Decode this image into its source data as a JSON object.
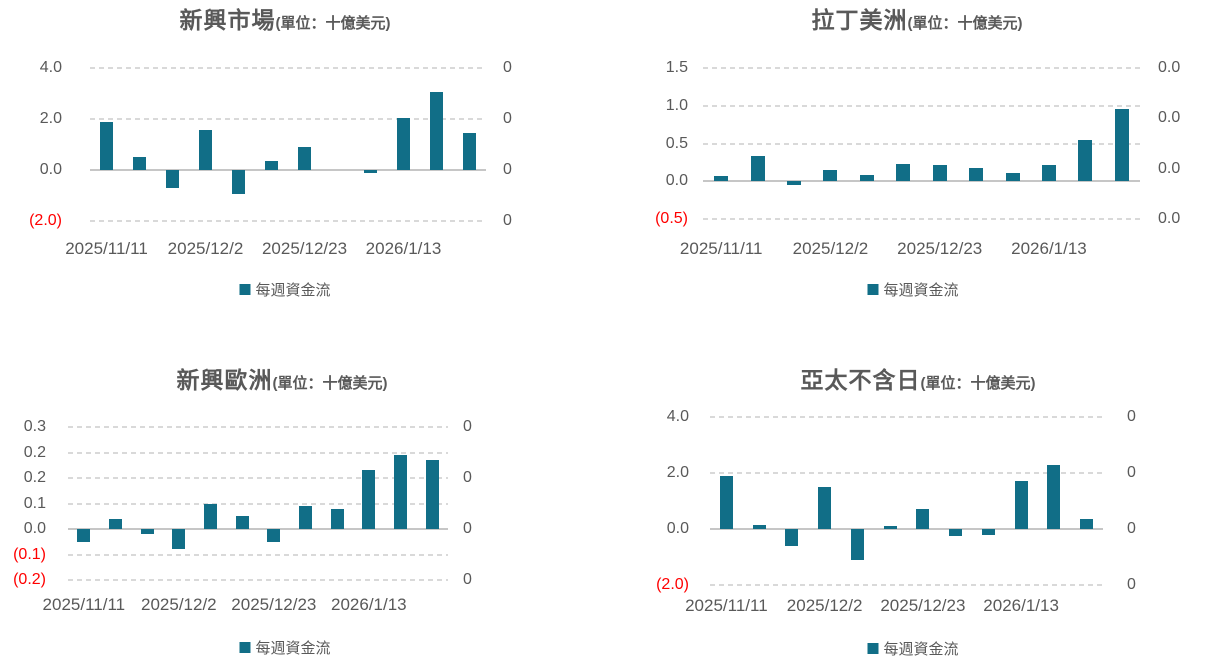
{
  "colors": {
    "bar": "#116e87",
    "gridline": "#d9d9d9",
    "zero_axis": "#c6c6c6",
    "tick_label": "#595959",
    "negative_tick_label": "#ff0000",
    "title": "#595959",
    "background": "#ffffff"
  },
  "chart_data": [
    {
      "type": "bar",
      "title": "新興市場",
      "title_unit": "(單位：十億美元)",
      "legend": [
        "每週資金流"
      ],
      "legend_position": "bottom",
      "grid": "horizontal-dashed",
      "n_bars": 12,
      "x_tick_labels": [
        "2025/11/11",
        "2025/12/2",
        "2025/12/23",
        "2026/1/13"
      ],
      "categories": [
        "2025/11/11",
        "",
        "",
        "2025/12/2",
        "",
        "",
        "2025/12/23",
        "",
        "",
        "2026/1/13",
        "",
        ""
      ],
      "series": [
        {
          "name": "每週資金流",
          "values": [
            1.9,
            0.5,
            -0.7,
            1.55,
            -0.95,
            0.35,
            0.9,
            0,
            -0.05,
            2.05,
            3.05,
            1.45
          ]
        }
      ],
      "y_axis_left": {
        "tick_labels": [
          "4.0",
          "2.0",
          "0.0",
          "(2.0)"
        ],
        "tick_values": [
          4,
          2,
          0,
          -2
        ]
      },
      "y_axis_right": {
        "tick_labels": [
          "0",
          "0",
          "0",
          "0"
        ]
      },
      "ylim": [
        -2,
        4
      ]
    },
    {
      "type": "bar",
      "title": "拉丁美洲",
      "title_unit": "(單位：十億美元)",
      "legend": [
        "每週資金流"
      ],
      "legend_position": "bottom",
      "grid": "horizontal-dashed",
      "n_bars": 12,
      "x_tick_labels": [
        "2025/11/11",
        "2025/12/2",
        "2025/12/23",
        "2026/1/13"
      ],
      "categories": [
        "2025/11/11",
        "",
        "",
        "2025/12/2",
        "",
        "",
        "2025/12/23",
        "",
        "",
        "2026/1/13",
        "",
        ""
      ],
      "series": [
        {
          "name": "每週資金流",
          "values": [
            0.07,
            0.33,
            -0.05,
            0.15,
            0.08,
            0.23,
            0.22,
            0.17,
            0.11,
            0.21,
            0.54,
            0.96
          ]
        }
      ],
      "y_axis_left": {
        "tick_labels": [
          "1.5",
          "1.0",
          "0.5",
          "0.0",
          "(0.5)"
        ],
        "tick_values": [
          1.5,
          1.0,
          0.5,
          0,
          -0.5
        ]
      },
      "y_axis_right": {
        "tick_labels": [
          "0.0",
          "0.0",
          "0.0",
          "0.0"
        ]
      },
      "ylim": [
        -0.5,
        1.5
      ]
    },
    {
      "type": "bar",
      "title": "新興歐洲",
      "title_unit": "(單位：十億美元)",
      "legend": [
        "每週資金流"
      ],
      "legend_position": "bottom",
      "grid": "horizontal-dashed",
      "n_bars": 12,
      "x_tick_labels": [
        "2025/11/11",
        "2025/12/2",
        "2025/12/23",
        "2026/1/13"
      ],
      "categories": [
        "2025/11/11",
        "",
        "",
        "2025/12/2",
        "",
        "",
        "2025/12/23",
        "",
        "",
        "2026/1/13",
        "",
        ""
      ],
      "series": [
        {
          "name": "每週資金流",
          "values": [
            -0.05,
            0.04,
            -0.02,
            -0.08,
            0.1,
            0.05,
            -0.05,
            0.09,
            0.08,
            0.23,
            0.29,
            0.27
          ]
        }
      ],
      "y_axis_left": {
        "tick_labels": [
          "0.3",
          "0.2",
          "0.2",
          "0.1",
          "0.0",
          "(0.1)",
          "(0.2)"
        ]
      },
      "y_axis_right": {
        "tick_labels": [
          "0",
          "0",
          "0",
          "0"
        ]
      },
      "ylim": [
        -0.2,
        0.3
      ]
    },
    {
      "type": "bar",
      "title": "亞太不含日",
      "title_unit": "(單位：十億美元)",
      "legend": [
        "每週資金流"
      ],
      "legend_position": "bottom",
      "grid": "horizontal-dashed",
      "n_bars": 12,
      "x_tick_labels": [
        "2025/11/11",
        "2025/12/2",
        "2025/12/23",
        "2026/1/13"
      ],
      "categories": [
        "2025/11/11",
        "",
        "",
        "2025/12/2",
        "",
        "",
        "2025/12/23",
        "",
        "",
        "2026/1/13",
        "",
        ""
      ],
      "series": [
        {
          "name": "每週資金流",
          "values": [
            1.9,
            0.15,
            -0.6,
            1.5,
            -1.1,
            0.05,
            0.7,
            -0.25,
            -0.2,
            1.7,
            2.3,
            0.35
          ]
        }
      ],
      "y_axis_left": {
        "tick_labels": [
          "4.0",
          "2.0",
          "0.0",
          "(2.0)"
        ],
        "tick_values": [
          4,
          2,
          0,
          -2
        ]
      },
      "y_axis_right": {
        "tick_labels": [
          "0",
          "0",
          "0",
          "0"
        ]
      },
      "ylim": [
        -2,
        4
      ]
    }
  ]
}
